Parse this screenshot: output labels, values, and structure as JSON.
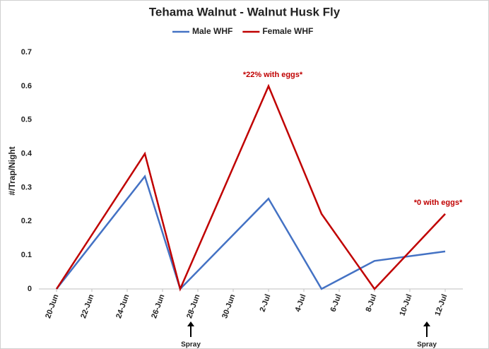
{
  "chart_data": {
    "type": "line",
    "title": "Tehama Walnut - Walnut Husk Fly",
    "y_label": "#/Trap/Night",
    "x": [
      "20-Jun",
      "25-Jun",
      "27-Jun",
      "2-Jul",
      "5-Jul",
      "8-Jul",
      "12-Jul"
    ],
    "series": [
      {
        "name": "Male WHF",
        "color": "#4472c4",
        "values": [
          0,
          0.333,
          0,
          0.267,
          0,
          0.083,
          0.111
        ]
      },
      {
        "name": "Female WHF",
        "color": "#c00000",
        "values": [
          0,
          0.4,
          0,
          0.6,
          0.222,
          0,
          0.222
        ]
      }
    ],
    "xlim": [
      "19-Jun",
      "13-Jul"
    ],
    "xticks": [
      "20-Jun",
      "22-Jun",
      "24-Jun",
      "26-Jun",
      "28-Jun",
      "30-Jun",
      "2-Jul",
      "4-Jul",
      "6-Jul",
      "8-Jul",
      "10-Jul",
      "12-Jul"
    ],
    "ylim": [
      0,
      0.7
    ],
    "yticks": [
      0,
      0.1,
      0.2,
      0.3,
      0.4,
      0.5,
      0.6,
      0.7
    ],
    "grid": false,
    "legend": "top",
    "annotations": [
      "*22% with eggs*",
      "*0 with eggs*"
    ],
    "spray_labels": [
      "Spray",
      "Spray"
    ]
  }
}
